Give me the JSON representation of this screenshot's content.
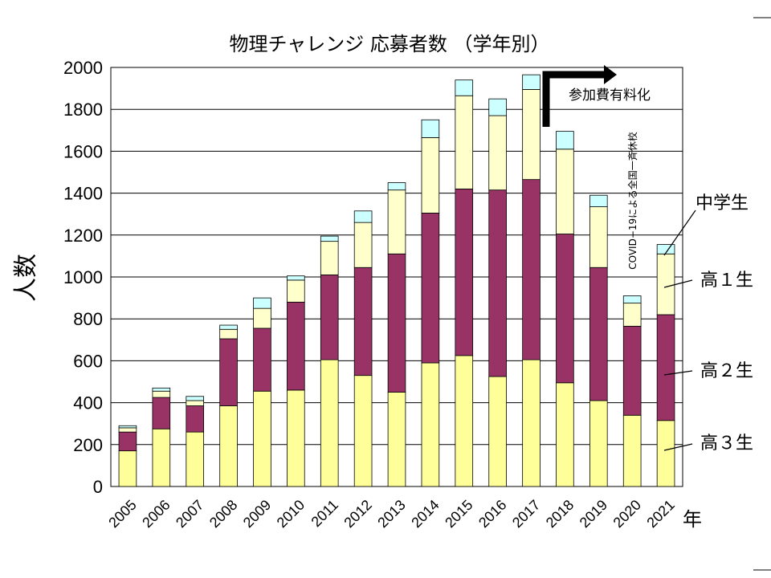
{
  "chart_data": {
    "type": "bar",
    "stacked": true,
    "title": "物理チャレンジ 応募者数 （学年別）",
    "ylabel": "人数",
    "xlabel": "年",
    "ylim": [
      0,
      2000
    ],
    "yticks": [
      0,
      200,
      400,
      600,
      800,
      1000,
      1200,
      1400,
      1600,
      1800,
      2000
    ],
    "grid": true,
    "categories": [
      "2005",
      "2006",
      "2007",
      "2008",
      "2009",
      "2010",
      "2011",
      "2012",
      "2013",
      "2014",
      "2015",
      "2016",
      "2017",
      "2018",
      "2019",
      "2020",
      "2021"
    ],
    "series": [
      {
        "name": "高３生",
        "color": "#ffff99",
        "values": [
          170,
          275,
          260,
          385,
          455,
          460,
          605,
          530,
          450,
          590,
          625,
          525,
          605,
          495,
          410,
          340,
          315
        ]
      },
      {
        "name": "高２生",
        "color": "#993366",
        "values": [
          90,
          150,
          125,
          320,
          300,
          420,
          405,
          515,
          660,
          715,
          795,
          890,
          860,
          710,
          635,
          425,
          505
        ]
      },
      {
        "name": "高１生",
        "color": "#ffffcc",
        "values": [
          20,
          30,
          25,
          45,
          95,
          105,
          160,
          215,
          305,
          360,
          445,
          355,
          430,
          405,
          290,
          110,
          290
        ]
      },
      {
        "name": "中学生",
        "color": "#ccffff",
        "values": [
          10,
          15,
          20,
          20,
          50,
          20,
          25,
          55,
          35,
          85,
          75,
          80,
          70,
          85,
          55,
          35,
          45
        ]
      }
    ],
    "annotations": {
      "fee": "参加費有料化",
      "covid": "COVID−19による全国一斉休校"
    }
  }
}
